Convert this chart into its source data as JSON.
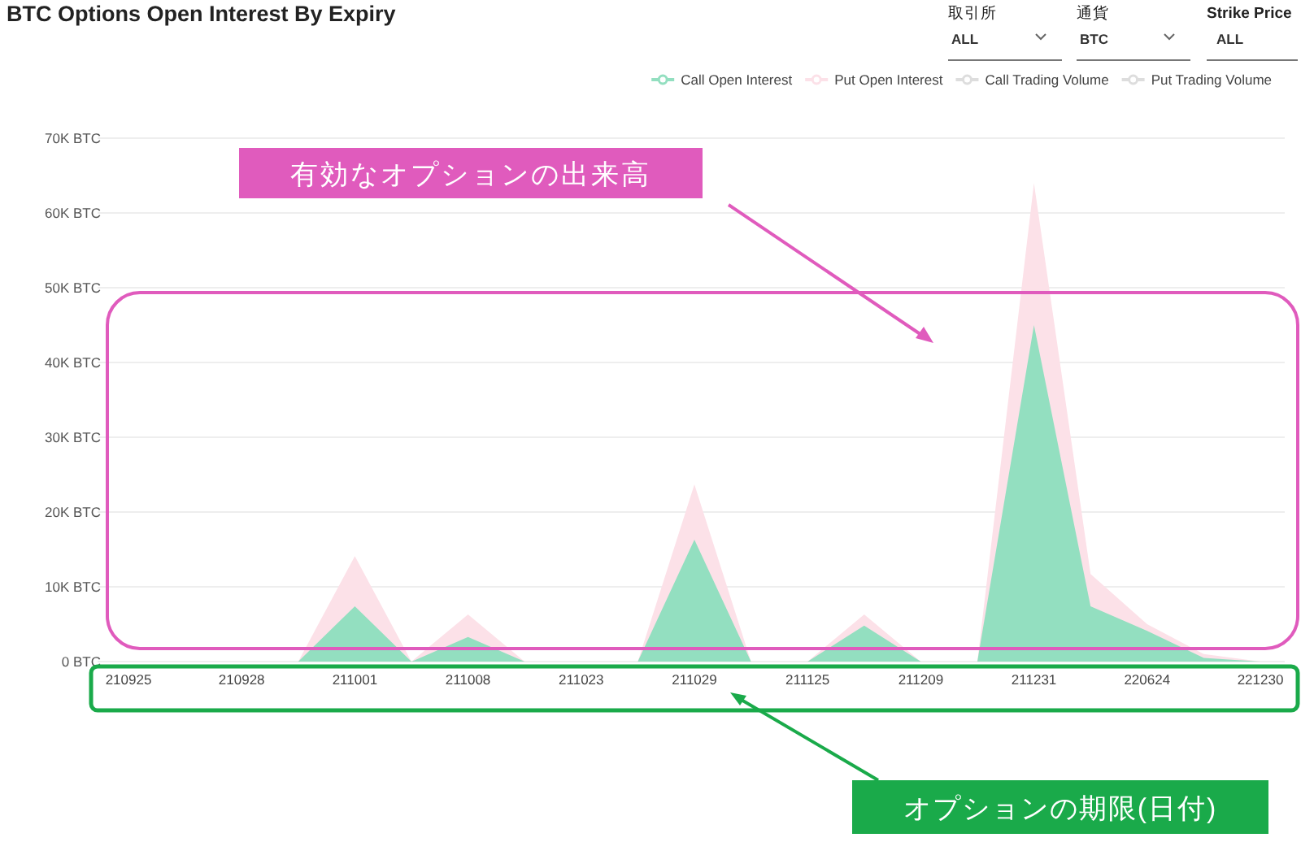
{
  "chart_data": {
    "type": "area",
    "title": "BTC Options Open Interest By Expiry",
    "categories": [
      "210925",
      null,
      "210928",
      null,
      "211001",
      null,
      "211008",
      null,
      "211023",
      null,
      "211029",
      null,
      "211125",
      null,
      "211209",
      null,
      "211231",
      null,
      "220624",
      null,
      "221230"
    ],
    "series": [
      {
        "name": "Call Open Interest",
        "color": "#93dfc0",
        "values": [
          0,
          0,
          0,
          0,
          7400,
          0,
          3300,
          0,
          0,
          0,
          16300,
          0,
          0,
          4800,
          0,
          0,
          45000,
          7400,
          4100,
          500,
          0
        ]
      },
      {
        "name": "Put  Open Interest",
        "color": "#fce1e8",
        "values": [
          0,
          0,
          0,
          0,
          14100,
          0,
          6300,
          0,
          0,
          0,
          23700,
          0,
          0,
          6300,
          0,
          0,
          64000,
          11700,
          5000,
          1000,
          0
        ]
      },
      {
        "name": "Call Trading Volume",
        "color": "#dddddd",
        "values": [
          null,
          null,
          null,
          null,
          null,
          null,
          null,
          null,
          null,
          null,
          null,
          null,
          null,
          null,
          null,
          null,
          null,
          null,
          null,
          null,
          null
        ]
      },
      {
        "name": "Put  Trading Volume",
        "color": "#dddddd",
        "values": [
          null,
          null,
          null,
          null,
          null,
          null,
          null,
          null,
          null,
          null,
          null,
          null,
          null,
          null,
          null,
          null,
          null,
          null,
          null,
          null,
          null
        ]
      }
    ],
    "ylim": [
      0,
      70000
    ],
    "yticks": [
      {
        "value": 0,
        "label": "0 BTC"
      },
      {
        "value": 10000,
        "label": "10K BTC"
      },
      {
        "value": 20000,
        "label": "20K BTC"
      },
      {
        "value": 30000,
        "label": "30K BTC"
      },
      {
        "value": 40000,
        "label": "40K BTC"
      },
      {
        "value": 50000,
        "label": "50K BTC"
      },
      {
        "value": 60000,
        "label": "60K BTC"
      },
      {
        "value": 70000,
        "label": "70K BTC"
      }
    ],
    "grid": "y",
    "legend": "top right",
    "annotations": [
      "有効なオプションの出来高",
      "オプションの期限(日付)",
      "取引所",
      "ALL",
      "通貨",
      "BTC",
      "Strike Price",
      "ALL"
    ]
  }
}
